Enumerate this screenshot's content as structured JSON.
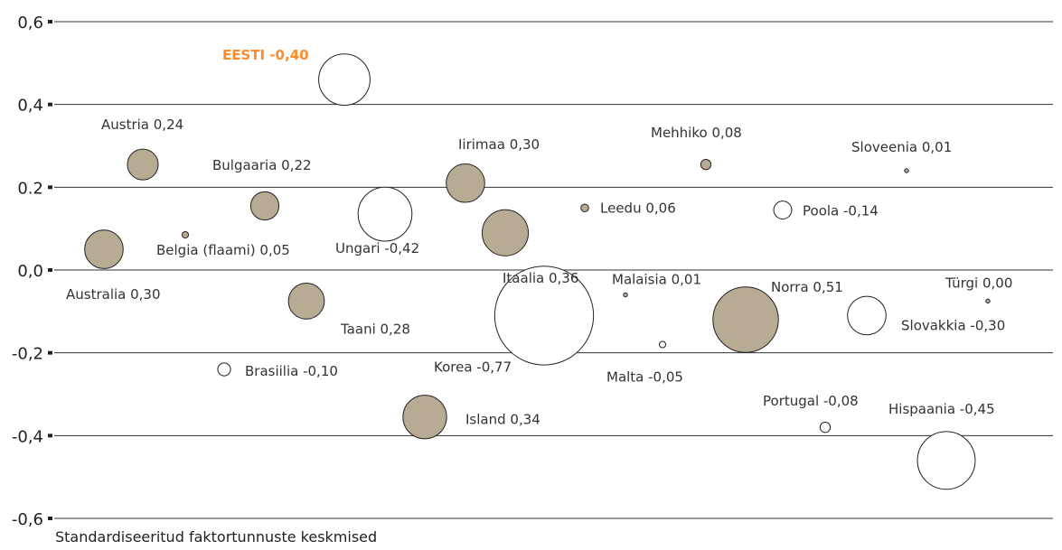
{
  "chart_data": {
    "type": "scatter",
    "title": "",
    "xlabel": "Standardiseeritud faktortunnuste keskmised",
    "ylabel": "",
    "ylim": [
      -0.6,
      0.6
    ],
    "yticks": [
      "0,6",
      "0,4",
      "0.2",
      "0,0",
      "-0,2",
      "-0,4",
      "-0,6"
    ],
    "grid": true,
    "colors": {
      "positive": "#b8ab93",
      "negative": "#ffffff",
      "highlight": "#ff8a2c"
    },
    "points": [
      {
        "label": "EESTI -0,40",
        "value": -0.4,
        "y": 0.46,
        "highlight": true
      },
      {
        "label": "Austria 0,24",
        "value": 0.24,
        "y": 0.255
      },
      {
        "label": "Bulgaaria 0,22",
        "value": 0.22,
        "y": 0.155
      },
      {
        "label": "Iirimaa 0,30",
        "value": 0.3,
        "y": 0.21
      },
      {
        "label": "Mehhiko 0,08",
        "value": 0.08,
        "y": 0.255
      },
      {
        "label": "Sloveenia 0,01",
        "value": 0.01,
        "y": 0.24
      },
      {
        "label": "Leedu 0,06",
        "value": 0.06,
        "y": 0.15
      },
      {
        "label": "Poola -0,14",
        "value": -0.14,
        "y": 0.145
      },
      {
        "label": "Ungari -0,42",
        "value": -0.42,
        "y": 0.135
      },
      {
        "label": "Belgia (flaami) 0,05",
        "value": 0.05,
        "y": 0.085
      },
      {
        "label": "Australia 0,30",
        "value": 0.3,
        "y": 0.05
      },
      {
        "label": "Itaalia 0,36",
        "value": 0.36,
        "y": 0.09
      },
      {
        "label": "Malaisia 0,01",
        "value": 0.01,
        "y": -0.06
      },
      {
        "label": "Norra 0,51",
        "value": 0.51,
        "y": -0.12
      },
      {
        "label": "Türgi 0,00",
        "value": 0.0,
        "y": -0.075
      },
      {
        "label": "Taani 0,28",
        "value": 0.28,
        "y": -0.075
      },
      {
        "label": "Korea -0,77",
        "value": -0.77,
        "y": -0.11
      },
      {
        "label": "Slovakkia -0,30",
        "value": -0.3,
        "y": -0.11
      },
      {
        "label": "Malta -0,05",
        "value": -0.05,
        "y": -0.18
      },
      {
        "label": "Brasiilia -0,10",
        "value": -0.1,
        "y": -0.24
      },
      {
        "label": "Island 0,34",
        "value": 0.34,
        "y": -0.355
      },
      {
        "label": "Portugal -0,08",
        "value": -0.08,
        "y": -0.38
      },
      {
        "label": "Hispaania -0,45",
        "value": -0.45,
        "y": -0.46
      }
    ]
  }
}
